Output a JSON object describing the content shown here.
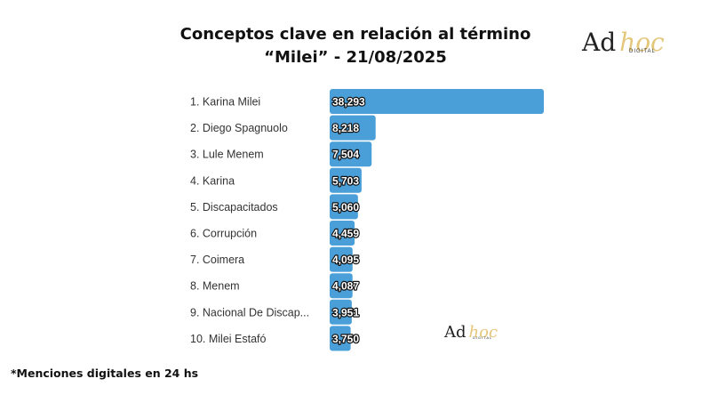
{
  "header": {
    "title_line1": "Conceptos clave en relación al término",
    "title_line2": "“Milei” - 21/08/2025"
  },
  "logo": {
    "text_ad": "Ad",
    "text_hoc": "hoc",
    "sub": "DIGITAL"
  },
  "footnote": "*Menciones digitales en 24 hs",
  "colors": {
    "bar": "#4a9fd8",
    "logo_accent": "#e4c77a"
  },
  "chart_data": {
    "type": "bar",
    "orientation": "horizontal",
    "title": "Conceptos clave en relación al término “Milei” - 21/08/2025",
    "categories": [
      "1. Karina Milei",
      "2. Diego Spagnuolo",
      "3. Lule Menem",
      "4. Karina",
      "5. Discapacitados",
      "6. Corrupción",
      "7. Coimera",
      "8. Menem",
      "9. Nacional De Discap...",
      "10. Milei Estafó"
    ],
    "values": [
      38293,
      8218,
      7504,
      5703,
      5060,
      4459,
      4095,
      4087,
      3951,
      3750
    ],
    "value_labels": [
      "38,293",
      "8,218",
      "7,504",
      "5,703",
      "5,060",
      "4,459",
      "4,095",
      "4,087",
      "3,951",
      "3,750"
    ],
    "xlim": [
      0,
      38293
    ],
    "grid": false,
    "legend": "none"
  }
}
